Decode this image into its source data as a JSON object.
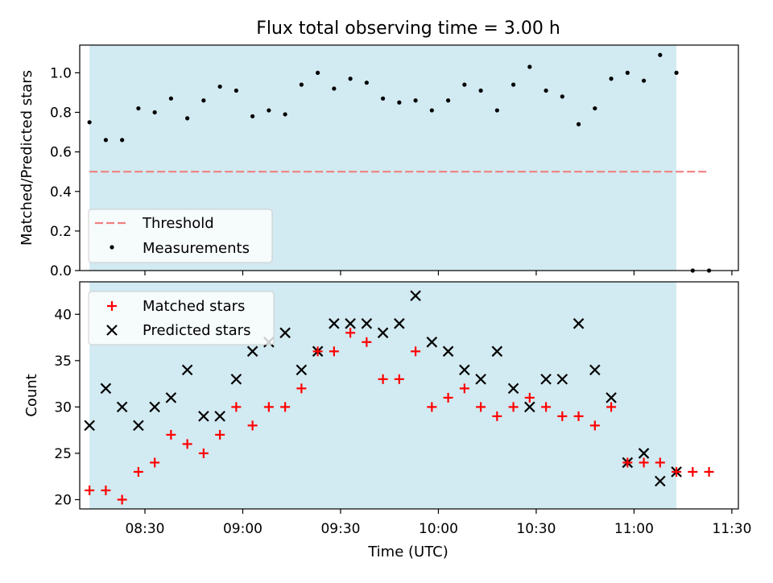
{
  "figure": {
    "title": "Flux total observing time = 3.00 h",
    "xlabel": "Time (UTC)"
  },
  "colors": {
    "band": "#add8e6",
    "threshold": "#f08080",
    "measurements": "#000000",
    "matched": "#ff0000",
    "predicted": "#000000"
  },
  "chart_data": [
    {
      "type": "scatter",
      "panel": "top",
      "ylabel": "Matched/Predicted stars",
      "ylim": [
        0.0,
        1.14
      ],
      "yticks": [
        "0.0",
        "0.2",
        "0.4",
        "0.6",
        "0.8",
        "1.0"
      ],
      "xlim": [
        "08:10",
        "11:32"
      ],
      "xticks": [
        "08:30",
        "09:00",
        "09:30",
        "10:00",
        "10:30",
        "11:00",
        "11:30"
      ],
      "xtick_labels_visible": false,
      "shaded_span": [
        "08:13",
        "11:13"
      ],
      "threshold": {
        "name": "Threshold",
        "value": 0.5,
        "x": [
          "08:13",
          "11:23"
        ],
        "style": "dashed"
      },
      "series": [
        {
          "name": "Measurements",
          "marker": "dot",
          "x": [
            "08:13",
            "08:18",
            "08:23",
            "08:28",
            "08:33",
            "08:38",
            "08:43",
            "08:48",
            "08:53",
            "08:58",
            "09:03",
            "09:08",
            "09:13",
            "09:18",
            "09:23",
            "09:28",
            "09:33",
            "09:38",
            "09:43",
            "09:48",
            "09:53",
            "09:58",
            "10:03",
            "10:08",
            "10:13",
            "10:18",
            "10:23",
            "10:28",
            "10:33",
            "10:38",
            "10:43",
            "10:48",
            "10:53",
            "10:58",
            "11:03",
            "11:08",
            "11:13",
            "11:18",
            "11:23"
          ],
          "y": [
            0.75,
            0.66,
            0.66,
            0.82,
            0.8,
            0.87,
            0.77,
            0.86,
            0.93,
            0.91,
            0.78,
            0.81,
            0.79,
            0.94,
            1.0,
            0.92,
            0.97,
            0.95,
            0.87,
            0.85,
            0.86,
            0.81,
            0.86,
            0.94,
            0.91,
            0.81,
            0.94,
            1.03,
            0.91,
            0.88,
            0.74,
            0.82,
            0.97,
            1.0,
            0.96,
            1.09,
            1.0,
            0.0,
            0.0
          ]
        }
      ],
      "legend": {
        "position": "lower-left",
        "entries": [
          "Threshold",
          "Measurements"
        ]
      }
    },
    {
      "type": "scatter",
      "panel": "bottom",
      "ylabel": "Count",
      "ylim": [
        19,
        43.5
      ],
      "yticks": [
        "20",
        "25",
        "30",
        "35",
        "40"
      ],
      "xlim": [
        "08:10",
        "11:32"
      ],
      "xticks": [
        "08:30",
        "09:00",
        "09:30",
        "10:00",
        "10:30",
        "11:00",
        "11:30"
      ],
      "shaded_span": [
        "08:13",
        "11:13"
      ],
      "series": [
        {
          "name": "Matched stars",
          "marker": "plus",
          "x": [
            "08:13",
            "08:18",
            "08:23",
            "08:28",
            "08:33",
            "08:38",
            "08:43",
            "08:48",
            "08:53",
            "08:58",
            "09:03",
            "09:08",
            "09:13",
            "09:18",
            "09:23",
            "09:28",
            "09:33",
            "09:38",
            "09:43",
            "09:48",
            "09:53",
            "09:58",
            "10:03",
            "10:08",
            "10:13",
            "10:18",
            "10:23",
            "10:28",
            "10:33",
            "10:38",
            "10:43",
            "10:48",
            "10:53",
            "10:58",
            "11:03",
            "11:08",
            "11:13",
            "11:18",
            "11:23"
          ],
          "y": [
            21,
            21,
            20,
            23,
            24,
            27,
            26,
            25,
            27,
            30,
            28,
            30,
            30,
            32,
            36,
            36,
            38,
            37,
            33,
            33,
            36,
            30,
            31,
            32,
            30,
            29,
            30,
            31,
            30,
            29,
            29,
            28,
            30,
            24,
            24,
            24,
            23,
            23,
            23
          ]
        },
        {
          "name": "Predicted stars",
          "marker": "x",
          "x": [
            "08:13",
            "08:18",
            "08:23",
            "08:28",
            "08:33",
            "08:38",
            "08:43",
            "08:48",
            "08:53",
            "08:58",
            "09:03",
            "09:08",
            "09:13",
            "09:18",
            "09:23",
            "09:28",
            "09:33",
            "09:38",
            "09:43",
            "09:48",
            "09:53",
            "09:58",
            "10:03",
            "10:08",
            "10:13",
            "10:18",
            "10:23",
            "10:28",
            "10:33",
            "10:38",
            "10:43",
            "10:48",
            "10:53",
            "10:58",
            "11:03",
            "11:08",
            "11:13"
          ],
          "y": [
            28,
            32,
            30,
            28,
            30,
            31,
            34,
            29,
            29,
            33,
            36,
            37,
            38,
            34,
            36,
            39,
            39,
            39,
            38,
            39,
            42,
            37,
            36,
            34,
            33,
            36,
            32,
            30,
            33,
            33,
            39,
            34,
            31,
            24,
            25,
            22,
            23
          ]
        }
      ],
      "legend": {
        "position": "upper-left",
        "entries": [
          "Matched stars",
          "Predicted stars"
        ]
      }
    }
  ]
}
